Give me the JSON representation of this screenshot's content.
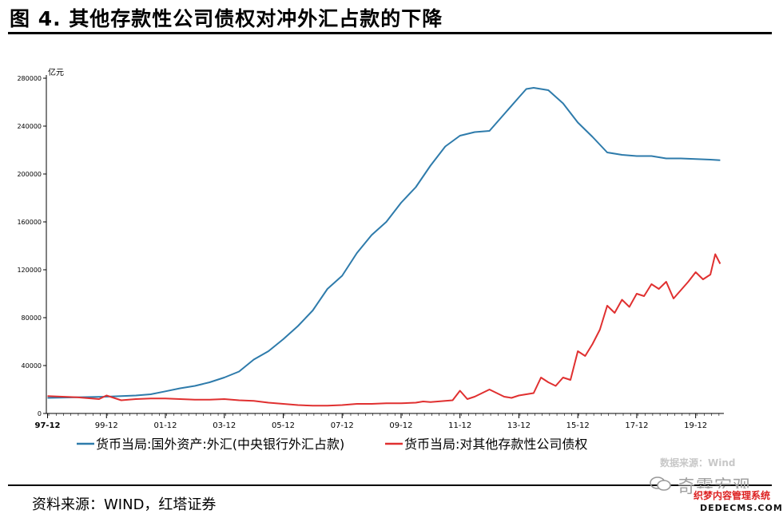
{
  "title": "图 4. 其他存款性公司债权对冲外汇占款的下降",
  "source": "资料来源：WIND，红塔证券",
  "watermarks": {
    "line1": "数据来源：Wind",
    "line2": "奇霖宏观",
    "line3": "织梦内容管理系统",
    "line4": "DEDECMS.COM"
  },
  "chart_data": {
    "type": "line",
    "ylabel": "亿元",
    "ylim": [
      0,
      280000
    ],
    "yticks": [
      0,
      40000,
      80000,
      120000,
      160000,
      200000,
      240000,
      280000
    ],
    "ytick_labels": [
      "0",
      "40000",
      "80000",
      "120000",
      "160000",
      "200000",
      "240000",
      "280000"
    ],
    "xlim": [
      1997.917,
      2020.917
    ],
    "xticks": [
      "97-12",
      "99-12",
      "01-12",
      "03-12",
      "05-12",
      "07-12",
      "09-12",
      "11-12",
      "13-12",
      "15-12",
      "17-12",
      "19-12"
    ],
    "legend_position": "bottom",
    "grid": false,
    "series": [
      {
        "name": "货币当局:国外资产:外汇(中央银行外汇占款)",
        "color": "#2e7bab",
        "x": [
          "1997-12",
          "1998-12",
          "1999-12",
          "2000-06",
          "2000-12",
          "2001-06",
          "2001-12",
          "2002-06",
          "2002-12",
          "2003-06",
          "2003-12",
          "2004-06",
          "2004-12",
          "2005-06",
          "2005-12",
          "2006-06",
          "2006-12",
          "2007-06",
          "2007-12",
          "2008-06",
          "2008-12",
          "2009-06",
          "2009-12",
          "2010-06",
          "2010-12",
          "2011-06",
          "2011-12",
          "2012-06",
          "2012-12",
          "2013-06",
          "2013-12",
          "2014-03",
          "2014-06",
          "2014-12",
          "2015-06",
          "2015-12",
          "2016-06",
          "2016-12",
          "2017-06",
          "2017-12",
          "2018-06",
          "2018-12",
          "2019-06",
          "2019-12",
          "2020-06",
          "2020-10"
        ],
        "y": [
          13000,
          13500,
          14000,
          14500,
          15000,
          16000,
          18500,
          21000,
          23000,
          26000,
          30000,
          35000,
          45000,
          52000,
          62000,
          73000,
          86000,
          104000,
          115000,
          134000,
          149000,
          160000,
          176000,
          189000,
          207000,
          223000,
          232000,
          235000,
          236000,
          250000,
          264000,
          271000,
          272000,
          270000,
          259000,
          243000,
          231000,
          218000,
          216000,
          215000,
          215000,
          213000,
          213000,
          212500,
          212000,
          211500
        ]
      },
      {
        "name": "货币当局:对其他存款性公司债权",
        "color": "#e03030",
        "x": [
          "1997-12",
          "1998-12",
          "1999-09",
          "1999-12",
          "2000-06",
          "2000-12",
          "2001-06",
          "2001-12",
          "2002-06",
          "2002-12",
          "2003-06",
          "2003-12",
          "2004-06",
          "2004-12",
          "2005-06",
          "2005-12",
          "2006-06",
          "2006-12",
          "2007-06",
          "2007-12",
          "2008-06",
          "2008-12",
          "2009-06",
          "2009-12",
          "2010-06",
          "2010-09",
          "2010-12",
          "2011-06",
          "2011-09",
          "2011-12",
          "2012-03",
          "2012-06",
          "2012-12",
          "2013-06",
          "2013-09",
          "2013-12",
          "2014-06",
          "2014-09",
          "2014-12",
          "2015-03",
          "2015-06",
          "2015-09",
          "2015-12",
          "2016-03",
          "2016-06",
          "2016-09",
          "2016-12",
          "2017-03",
          "2017-06",
          "2017-09",
          "2017-12",
          "2018-03",
          "2018-06",
          "2018-09",
          "2018-12",
          "2019-03",
          "2019-06",
          "2019-09",
          "2019-12",
          "2020-03",
          "2020-06",
          "2020-08",
          "2020-10"
        ],
        "y": [
          14500,
          13500,
          12000,
          15000,
          11000,
          12000,
          12500,
          12500,
          12000,
          11500,
          11500,
          12000,
          11000,
          10500,
          9000,
          8000,
          7000,
          6500,
          6500,
          7000,
          8000,
          8000,
          8500,
          8500,
          9000,
          10000,
          9500,
          10500,
          11000,
          19000,
          12000,
          14000,
          20000,
          14000,
          13000,
          15000,
          17000,
          30000,
          26000,
          23000,
          30000,
          28000,
          52000,
          48000,
          58000,
          70000,
          90000,
          84000,
          95000,
          89000,
          100000,
          98000,
          108000,
          104000,
          110000,
          96000,
          103000,
          110000,
          118000,
          112000,
          116000,
          133000,
          125000
        ]
      }
    ]
  }
}
